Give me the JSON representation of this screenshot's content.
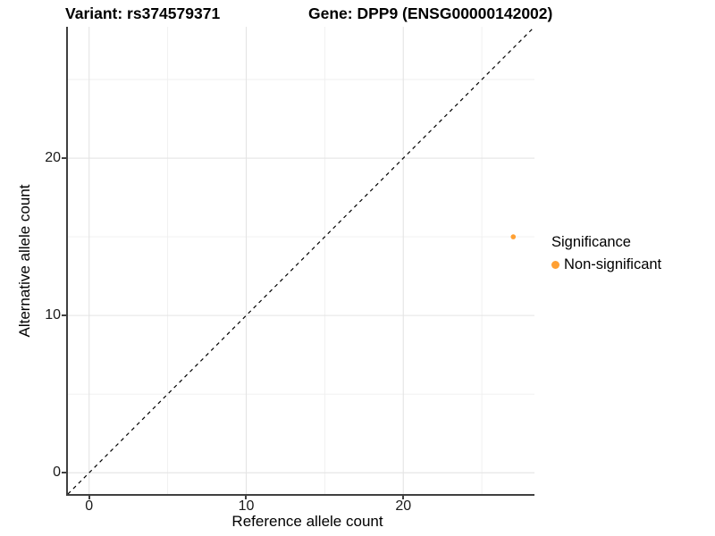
{
  "titles": {
    "variant": "Variant: rs374579371",
    "gene": "Gene: DPP9 (ENSG00000142002)"
  },
  "chart_data": {
    "type": "scatter",
    "title": "Variant: rs374579371    Gene: DPP9 (ENSG00000142002)",
    "xlabel": "Reference allele count",
    "ylabel": "Alternative allele count",
    "xlim": [
      -1.35,
      28.35
    ],
    "ylim": [
      -1.35,
      28.35
    ],
    "x_ticks": [
      0,
      10,
      20
    ],
    "y_ticks": [
      0,
      10,
      20
    ],
    "x_minor_ticks": [
      5,
      15,
      25
    ],
    "y_minor_ticks": [
      5,
      15,
      25
    ],
    "grid": "major and minor, light gray on white",
    "identity_line": {
      "type": "dashed",
      "from": [
        -1.35,
        -1.35
      ],
      "to": [
        28.35,
        28.35
      ],
      "color": "#000000"
    },
    "series": [
      {
        "name": "Non-significant",
        "color": "#FFA033",
        "points": [
          {
            "x": 27,
            "y": 15
          }
        ]
      }
    ],
    "legend": {
      "title": "Significance",
      "position": "right",
      "entries": [
        {
          "label": "Non-significant",
          "color": "#FFA033"
        }
      ]
    }
  },
  "colors": {
    "background": "#FFFFFF",
    "axis_line": "#404040",
    "grid_major": "#E4E4E4",
    "grid_minor": "#EFEFEF",
    "point": "#FFA033",
    "dashed_line": "#000000",
    "text": "#000000"
  }
}
